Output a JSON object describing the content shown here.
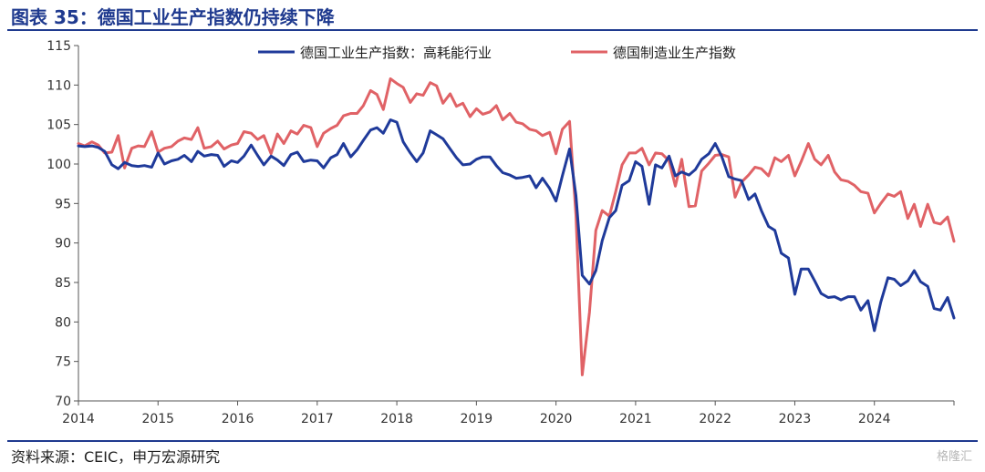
{
  "title": "图表 35：德国工业生产指数仍持续下降",
  "source": "资料来源：CEIC，申万宏源研究",
  "watermark": "格隆汇",
  "colors": {
    "series1": "#1f3a9a",
    "series2": "#e06266",
    "title": "#1f3a8f"
  },
  "chart_data": {
    "type": "line",
    "title": "图表 35：德国工业生产指数仍持续下降",
    "xlabel": "",
    "ylabel": "",
    "ylim": [
      70,
      115
    ],
    "yticks": [
      70,
      75,
      80,
      85,
      90,
      95,
      100,
      105,
      110,
      115
    ],
    "xlim": [
      2014.0,
      2025.0
    ],
    "xticks": [
      "2014",
      "2015",
      "2016",
      "2017",
      "2018",
      "2019",
      "2020",
      "2021",
      "2022",
      "2023",
      "2024"
    ],
    "legend_position": "top",
    "series": [
      {
        "name": "德国工业生产指数：高耗能行业",
        "color": "#1f3a9a",
        "points": [
          [
            2014.0,
            102.3
          ],
          [
            2014.08,
            102.2
          ],
          [
            2014.17,
            102.3
          ],
          [
            2014.25,
            102.1
          ],
          [
            2014.33,
            101.6
          ],
          [
            2014.42,
            99.9
          ],
          [
            2014.5,
            99.4
          ],
          [
            2014.58,
            100.2
          ],
          [
            2014.67,
            99.8
          ],
          [
            2014.75,
            99.7
          ],
          [
            2014.83,
            99.8
          ],
          [
            2014.92,
            99.6
          ],
          [
            2015.0,
            101.4
          ],
          [
            2015.08,
            100.0
          ],
          [
            2015.17,
            100.4
          ],
          [
            2015.25,
            100.6
          ],
          [
            2015.33,
            101.1
          ],
          [
            2015.42,
            100.3
          ],
          [
            2015.5,
            101.6
          ],
          [
            2015.58,
            101.0
          ],
          [
            2015.67,
            101.2
          ],
          [
            2015.75,
            101.1
          ],
          [
            2015.83,
            99.7
          ],
          [
            2015.92,
            100.4
          ],
          [
            2016.0,
            100.2
          ],
          [
            2016.08,
            101.0
          ],
          [
            2016.17,
            102.4
          ],
          [
            2016.25,
            101.1
          ],
          [
            2016.33,
            99.9
          ],
          [
            2016.42,
            101.0
          ],
          [
            2016.5,
            100.5
          ],
          [
            2016.58,
            99.8
          ],
          [
            2016.67,
            101.2
          ],
          [
            2016.75,
            101.5
          ],
          [
            2016.83,
            100.3
          ],
          [
            2016.92,
            100.5
          ],
          [
            2017.0,
            100.4
          ],
          [
            2017.08,
            99.5
          ],
          [
            2017.17,
            100.8
          ],
          [
            2017.25,
            101.2
          ],
          [
            2017.33,
            102.6
          ],
          [
            2017.42,
            100.9
          ],
          [
            2017.5,
            101.8
          ],
          [
            2017.58,
            103.0
          ],
          [
            2017.67,
            104.3
          ],
          [
            2017.75,
            104.6
          ],
          [
            2017.83,
            103.9
          ],
          [
            2017.92,
            105.6
          ],
          [
            2018.0,
            105.3
          ],
          [
            2018.08,
            102.8
          ],
          [
            2018.17,
            101.4
          ],
          [
            2018.25,
            100.3
          ],
          [
            2018.33,
            101.4
          ],
          [
            2018.42,
            104.2
          ],
          [
            2018.5,
            103.7
          ],
          [
            2018.58,
            103.2
          ],
          [
            2018.67,
            101.9
          ],
          [
            2018.75,
            100.8
          ],
          [
            2018.83,
            99.9
          ],
          [
            2018.92,
            100.0
          ],
          [
            2019.0,
            100.6
          ],
          [
            2019.08,
            100.9
          ],
          [
            2019.17,
            100.9
          ],
          [
            2019.25,
            99.8
          ],
          [
            2019.33,
            98.9
          ],
          [
            2019.42,
            98.6
          ],
          [
            2019.5,
            98.2
          ],
          [
            2019.58,
            98.3
          ],
          [
            2019.67,
            98.5
          ],
          [
            2019.75,
            97.0
          ],
          [
            2019.83,
            98.2
          ],
          [
            2019.92,
            96.9
          ],
          [
            2020.0,
            95.3
          ],
          [
            2020.08,
            98.5
          ],
          [
            2020.17,
            101.9
          ],
          [
            2020.25,
            96.0
          ],
          [
            2020.33,
            85.9
          ],
          [
            2020.42,
            84.8
          ],
          [
            2020.5,
            86.5
          ],
          [
            2020.58,
            90.3
          ],
          [
            2020.67,
            93.2
          ],
          [
            2020.75,
            94.1
          ],
          [
            2020.83,
            97.3
          ],
          [
            2020.92,
            97.9
          ],
          [
            2021.0,
            100.3
          ],
          [
            2021.08,
            99.7
          ],
          [
            2021.17,
            94.9
          ],
          [
            2021.25,
            99.9
          ],
          [
            2021.33,
            99.5
          ],
          [
            2021.42,
            101.0
          ],
          [
            2021.5,
            98.5
          ],
          [
            2021.58,
            99.0
          ],
          [
            2021.67,
            98.6
          ],
          [
            2021.75,
            99.3
          ],
          [
            2021.83,
            100.6
          ],
          [
            2021.92,
            101.3
          ],
          [
            2022.0,
            102.6
          ],
          [
            2022.08,
            101.0
          ],
          [
            2022.17,
            98.4
          ],
          [
            2022.25,
            98.1
          ],
          [
            2022.33,
            97.9
          ],
          [
            2022.42,
            95.5
          ],
          [
            2022.5,
            96.2
          ],
          [
            2022.58,
            94.1
          ],
          [
            2022.67,
            92.1
          ],
          [
            2022.75,
            91.6
          ],
          [
            2022.83,
            88.7
          ],
          [
            2022.92,
            88.1
          ],
          [
            2023.0,
            83.5
          ],
          [
            2023.08,
            86.7
          ],
          [
            2023.17,
            86.7
          ],
          [
            2023.25,
            85.2
          ],
          [
            2023.33,
            83.6
          ],
          [
            2023.42,
            83.1
          ],
          [
            2023.5,
            83.2
          ],
          [
            2023.58,
            82.8
          ],
          [
            2023.67,
            83.2
          ],
          [
            2023.75,
            83.2
          ],
          [
            2023.83,
            81.5
          ],
          [
            2023.92,
            82.7
          ],
          [
            2024.0,
            78.9
          ],
          [
            2024.08,
            82.5
          ],
          [
            2024.17,
            85.6
          ],
          [
            2024.25,
            85.4
          ],
          [
            2024.33,
            84.6
          ],
          [
            2024.42,
            85.2
          ],
          [
            2024.5,
            86.5
          ],
          [
            2024.58,
            85.1
          ],
          [
            2024.67,
            84.5
          ],
          [
            2024.75,
            81.7
          ],
          [
            2024.83,
            81.5
          ],
          [
            2024.92,
            83.1
          ],
          [
            2025.0,
            80.5
          ]
        ]
      },
      {
        "name": "德国制造业生产指数",
        "color": "#e06266",
        "points": [
          [
            2014.0,
            102.6
          ],
          [
            2014.08,
            102.3
          ],
          [
            2014.17,
            102.8
          ],
          [
            2014.25,
            102.4
          ],
          [
            2014.33,
            101.4
          ],
          [
            2014.42,
            101.5
          ],
          [
            2014.5,
            103.6
          ],
          [
            2014.58,
            99.5
          ],
          [
            2014.67,
            102.0
          ],
          [
            2014.75,
            102.3
          ],
          [
            2014.83,
            102.2
          ],
          [
            2014.92,
            104.1
          ],
          [
            2015.0,
            101.5
          ],
          [
            2015.08,
            102.0
          ],
          [
            2015.17,
            102.2
          ],
          [
            2015.25,
            102.9
          ],
          [
            2015.33,
            103.3
          ],
          [
            2015.42,
            103.1
          ],
          [
            2015.5,
            104.6
          ],
          [
            2015.58,
            102.0
          ],
          [
            2015.67,
            102.2
          ],
          [
            2015.75,
            102.9
          ],
          [
            2015.83,
            101.9
          ],
          [
            2015.92,
            102.4
          ],
          [
            2016.0,
            102.6
          ],
          [
            2016.08,
            104.1
          ],
          [
            2016.17,
            103.9
          ],
          [
            2016.25,
            103.1
          ],
          [
            2016.33,
            103.6
          ],
          [
            2016.42,
            101.3
          ],
          [
            2016.5,
            103.8
          ],
          [
            2016.58,
            102.6
          ],
          [
            2016.67,
            104.2
          ],
          [
            2016.75,
            103.8
          ],
          [
            2016.83,
            104.9
          ],
          [
            2016.92,
            104.6
          ],
          [
            2017.0,
            102.2
          ],
          [
            2017.08,
            103.9
          ],
          [
            2017.17,
            104.5
          ],
          [
            2017.25,
            104.9
          ],
          [
            2017.33,
            106.1
          ],
          [
            2017.42,
            106.4
          ],
          [
            2017.5,
            106.4
          ],
          [
            2017.58,
            107.4
          ],
          [
            2017.67,
            109.3
          ],
          [
            2017.75,
            108.8
          ],
          [
            2017.83,
            106.9
          ],
          [
            2017.92,
            110.8
          ],
          [
            2018.0,
            110.2
          ],
          [
            2018.08,
            109.7
          ],
          [
            2018.17,
            107.8
          ],
          [
            2018.25,
            108.9
          ],
          [
            2018.33,
            108.7
          ],
          [
            2018.42,
            110.3
          ],
          [
            2018.5,
            109.9
          ],
          [
            2018.58,
            107.7
          ],
          [
            2018.67,
            108.9
          ],
          [
            2018.75,
            107.3
          ],
          [
            2018.83,
            107.7
          ],
          [
            2018.92,
            106.0
          ],
          [
            2019.0,
            107.0
          ],
          [
            2019.08,
            106.3
          ],
          [
            2019.17,
            106.6
          ],
          [
            2019.25,
            107.4
          ],
          [
            2019.33,
            105.6
          ],
          [
            2019.42,
            106.4
          ],
          [
            2019.5,
            105.3
          ],
          [
            2019.58,
            105.1
          ],
          [
            2019.67,
            104.4
          ],
          [
            2019.75,
            104.2
          ],
          [
            2019.83,
            103.6
          ],
          [
            2019.92,
            104.0
          ],
          [
            2020.0,
            101.3
          ],
          [
            2020.08,
            104.4
          ],
          [
            2020.17,
            105.4
          ],
          [
            2020.25,
            93.5
          ],
          [
            2020.33,
            73.3
          ],
          [
            2020.42,
            81.2
          ],
          [
            2020.5,
            91.6
          ],
          [
            2020.58,
            94.1
          ],
          [
            2020.67,
            93.4
          ],
          [
            2020.75,
            96.5
          ],
          [
            2020.83,
            99.9
          ],
          [
            2020.92,
            101.4
          ],
          [
            2021.0,
            101.4
          ],
          [
            2021.08,
            102.0
          ],
          [
            2021.17,
            99.9
          ],
          [
            2021.25,
            101.4
          ],
          [
            2021.33,
            101.3
          ],
          [
            2021.42,
            100.4
          ],
          [
            2021.5,
            97.2
          ],
          [
            2021.58,
            100.6
          ],
          [
            2021.67,
            94.6
          ],
          [
            2021.75,
            94.7
          ],
          [
            2021.83,
            99.1
          ],
          [
            2021.92,
            100.1
          ],
          [
            2022.0,
            101.1
          ],
          [
            2022.08,
            101.2
          ],
          [
            2022.17,
            100.9
          ],
          [
            2022.25,
            95.8
          ],
          [
            2022.33,
            97.7
          ],
          [
            2022.42,
            98.6
          ],
          [
            2022.5,
            99.6
          ],
          [
            2022.58,
            99.4
          ],
          [
            2022.67,
            98.5
          ],
          [
            2022.75,
            100.8
          ],
          [
            2022.83,
            100.3
          ],
          [
            2022.92,
            101.1
          ],
          [
            2023.0,
            98.5
          ],
          [
            2023.08,
            100.3
          ],
          [
            2023.17,
            102.6
          ],
          [
            2023.25,
            100.6
          ],
          [
            2023.33,
            99.9
          ],
          [
            2023.42,
            101.1
          ],
          [
            2023.5,
            99.0
          ],
          [
            2023.58,
            98.0
          ],
          [
            2023.67,
            97.8
          ],
          [
            2023.75,
            97.3
          ],
          [
            2023.83,
            96.5
          ],
          [
            2023.92,
            96.3
          ],
          [
            2024.0,
            93.8
          ],
          [
            2024.08,
            95.0
          ],
          [
            2024.17,
            96.2
          ],
          [
            2024.25,
            95.9
          ],
          [
            2024.33,
            96.5
          ],
          [
            2024.42,
            93.1
          ],
          [
            2024.5,
            94.9
          ],
          [
            2024.58,
            92.1
          ],
          [
            2024.67,
            94.9
          ],
          [
            2024.75,
            92.6
          ],
          [
            2024.83,
            92.4
          ],
          [
            2024.92,
            93.3
          ],
          [
            2025.0,
            90.2
          ]
        ]
      }
    ]
  }
}
